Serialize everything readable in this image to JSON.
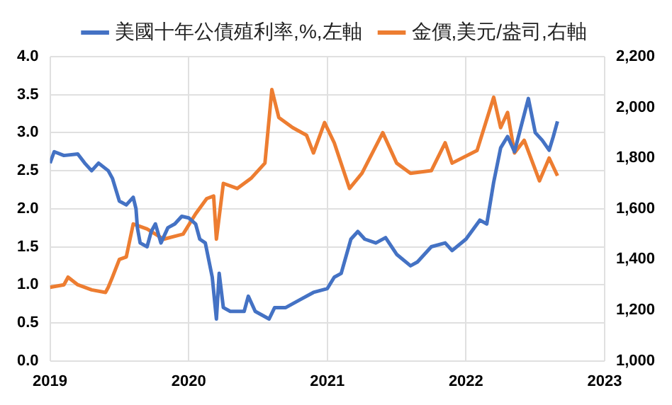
{
  "chart_data": {
    "type": "line",
    "legend": "top",
    "grid": true,
    "marker": "none",
    "line_style": "solid",
    "xlim": [
      2019,
      2023
    ],
    "xticks": [
      2019,
      2020,
      2021,
      2022,
      2023
    ],
    "ylim": [
      0,
      4
    ],
    "yticks": [
      {
        "value": 0,
        "label": "0.0"
      },
      0.5,
      {
        "value": 1,
        "label": "1.0"
      },
      1.5,
      {
        "value": 2,
        "label": "2.0"
      },
      2.5,
      {
        "value": 3,
        "label": "3.0"
      },
      3.5,
      {
        "value": 4,
        "label": "4.0"
      }
    ],
    "y2lim": [
      1000,
      2200
    ],
    "y2ticks": [
      {
        "value": 1000,
        "label": "1,000"
      },
      {
        "value": 1200,
        "label": "1,200"
      },
      {
        "value": 1400,
        "label": "1,400"
      },
      {
        "value": 1600,
        "label": "1,600"
      },
      {
        "value": 1800,
        "label": "1,800"
      },
      {
        "value": 2000,
        "label": "2,000"
      },
      {
        "value": 2200,
        "label": "2,200"
      }
    ],
    "series": [
      {
        "name": "美國十年公債殖利率,%,左軸",
        "color": "#4472c4",
        "x": [
          2019.0,
          2019.03,
          2019.1,
          2019.2,
          2019.25,
          2019.3,
          2019.35,
          2019.42,
          2019.45,
          2019.5,
          2019.55,
          2019.6,
          2019.62,
          2019.63,
          2019.65,
          2019.7,
          2019.73,
          2019.76,
          2019.8,
          2019.85,
          2019.9,
          2019.95,
          2020.0,
          2020.05,
          2020.08,
          2020.12,
          2020.17,
          2020.2,
          2020.22,
          2020.25,
          2020.3,
          2020.4,
          2020.43,
          2020.48,
          2020.58,
          2020.62,
          2020.7,
          2020.8,
          2020.9,
          2021.0,
          2021.05,
          2021.1,
          2021.17,
          2021.22,
          2021.27,
          2021.35,
          2021.42,
          2021.5,
          2021.6,
          2021.65,
          2021.75,
          2021.85,
          2021.9,
          2022.0,
          2022.1,
          2022.15,
          2022.2,
          2022.25,
          2022.3,
          2022.35,
          2022.45,
          2022.5,
          2022.55,
          2022.6,
          2022.63,
          2022.66
        ],
        "values": [
          2.6,
          2.75,
          2.7,
          2.72,
          2.6,
          2.5,
          2.6,
          2.5,
          2.4,
          2.1,
          2.05,
          2.15,
          2.0,
          1.75,
          1.55,
          1.5,
          1.7,
          1.8,
          1.55,
          1.75,
          1.8,
          1.9,
          1.88,
          1.8,
          1.6,
          1.55,
          1.1,
          0.55,
          1.15,
          0.7,
          0.65,
          0.65,
          0.85,
          0.65,
          0.55,
          0.7,
          0.7,
          0.8,
          0.9,
          0.95,
          1.1,
          1.15,
          1.6,
          1.7,
          1.6,
          1.55,
          1.62,
          1.4,
          1.25,
          1.3,
          1.5,
          1.55,
          1.45,
          1.6,
          1.85,
          1.8,
          2.35,
          2.8,
          2.95,
          2.75,
          3.45,
          3.0,
          2.9,
          2.77,
          2.95,
          3.15
        ]
      },
      {
        "name": "金價,美元/盎司,右軸",
        "color": "#ed7d31",
        "axis": "y2",
        "x": [
          2019.0,
          2019.1,
          2019.13,
          2019.2,
          2019.3,
          2019.4,
          2019.42,
          2019.45,
          2019.5,
          2019.55,
          2019.6,
          2019.7,
          2019.82,
          2019.96,
          2020.05,
          2020.13,
          2020.18,
          2020.2,
          2020.25,
          2020.35,
          2020.45,
          2020.55,
          2020.6,
          2020.65,
          2020.75,
          2020.85,
          2020.9,
          2020.98,
          2021.05,
          2021.16,
          2021.25,
          2021.4,
          2021.5,
          2021.6,
          2021.75,
          2021.85,
          2021.9,
          2022.08,
          2022.2,
          2022.25,
          2022.3,
          2022.35,
          2022.42,
          2022.53,
          2022.6,
          2022.66
        ],
        "values": [
          1290,
          1300,
          1330,
          1300,
          1280,
          1270,
          1290,
          1330,
          1400,
          1410,
          1540,
          1520,
          1480,
          1500,
          1580,
          1640,
          1650,
          1480,
          1700,
          1680,
          1720,
          1780,
          2070,
          1960,
          1920,
          1890,
          1820,
          1940,
          1860,
          1680,
          1740,
          1900,
          1780,
          1740,
          1750,
          1860,
          1780,
          1830,
          2040,
          1920,
          1980,
          1820,
          1870,
          1710,
          1800,
          1730
        ]
      }
    ]
  }
}
